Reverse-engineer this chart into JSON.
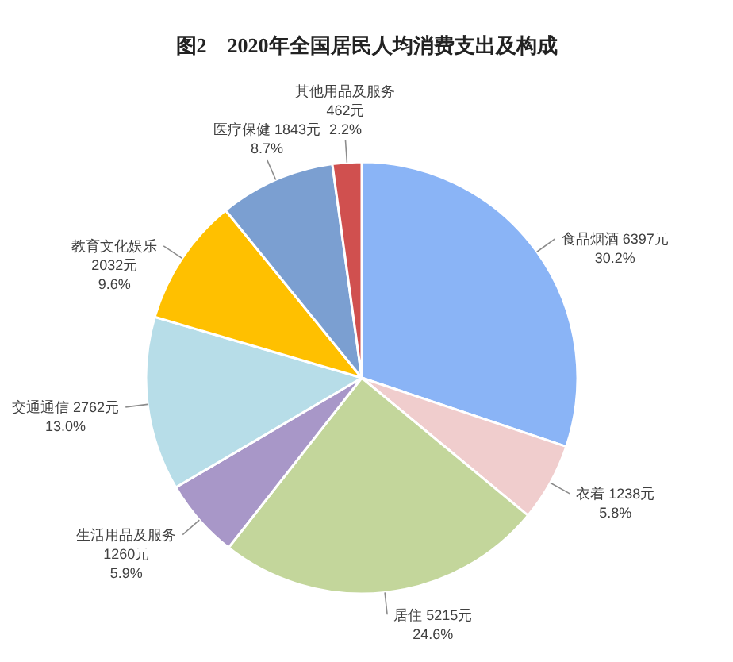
{
  "chart_data": {
    "type": "pie",
    "title": "图2　2020年全国居民人均消费支出及构成",
    "categories": [
      "食品烟酒",
      "衣着",
      "居住",
      "生活用品及服务",
      "交通通信",
      "教育文化娱乐",
      "医疗保健",
      "其他用品及服务"
    ],
    "values": [
      6397,
      1238,
      5215,
      1260,
      2762,
      2032,
      1843,
      462
    ],
    "colors": [
      "#8ab4f6",
      "#f0cdcd",
      "#c3d69b",
      "#a897c8",
      "#b7dde8",
      "#ffc000",
      "#7b9fd1",
      "#d0504f"
    ],
    "value_labels": [
      "6397元\n30.2%",
      "1238元\n5.8%",
      "5215元\n24.6%",
      "1260元\n5.9%",
      "2762元\n13.0%",
      "2032元\n9.6%",
      "1843元\n8.7%",
      "462元\n2.2%"
    ]
  }
}
